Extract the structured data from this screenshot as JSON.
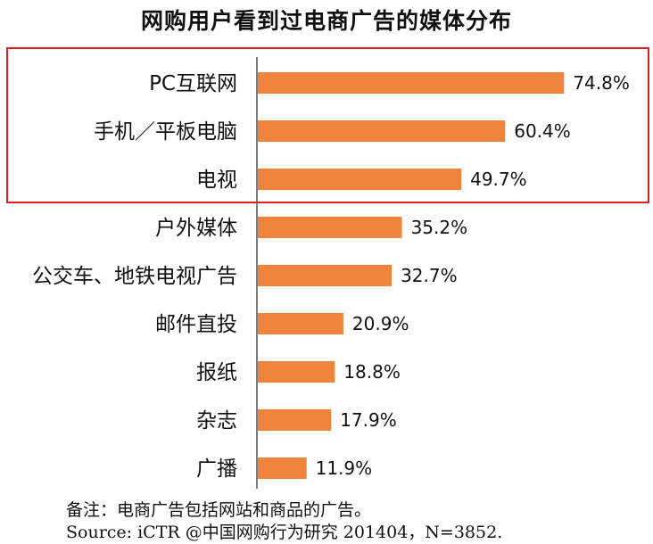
{
  "title": "网购用户看到过电商广告的媒体分布",
  "colors": {
    "bar": "#f0843c",
    "highlight_box": "#e02020",
    "axis": "#555555"
  },
  "chart_data": {
    "type": "bar",
    "orientation": "horizontal",
    "categories": [
      "PC互联网",
      "手机／平板电脑",
      "电视",
      "户外媒体",
      "公交车、地铁电视广告",
      "邮件直投",
      "报纸",
      "杂志",
      "广播"
    ],
    "values": [
      74.8,
      60.4,
      49.7,
      35.2,
      32.7,
      20.9,
      18.8,
      17.9,
      11.9
    ],
    "value_labels": [
      "74.8%",
      "60.4%",
      "49.7%",
      "35.2%",
      "32.7%",
      "20.9%",
      "18.8%",
      "17.9%",
      "11.9%"
    ],
    "highlighted_categories": [
      "PC互联网",
      "手机／平板电脑",
      "电视"
    ],
    "grid": false,
    "legend": "none"
  },
  "notes": {
    "remark": "备注：电商广告包括网站和商品的广告。",
    "source": "Source: iCTR @中国网购行为研究 201404，N=3852."
  }
}
